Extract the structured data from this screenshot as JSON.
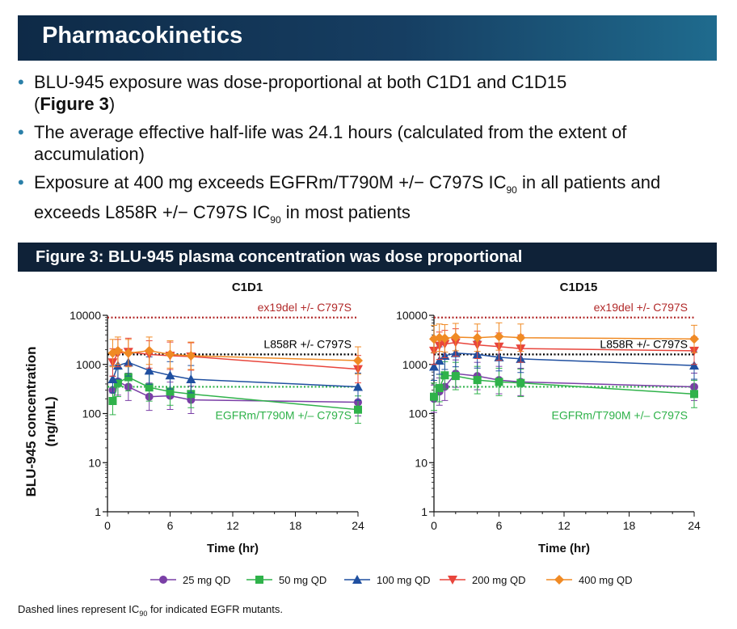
{
  "header": {
    "title": "Pharmacokinetics"
  },
  "bullets": [
    {
      "text": "BLU-945 exposure was dose-proportional at both C1D1 and C1D15",
      "bold_part": "Figure 3"
    },
    {
      "text": "The average effective half-life was 24.1 hours (calculated from the extent of accumulation)"
    },
    {
      "part1": "Exposure at 400 mg exceeds EGFRm/T790M +/− C797S IC",
      "sub1": "90",
      "part2": " in all patients and exceeds L858R +/− C797S IC",
      "sub2": "90",
      "part3": " in most patients"
    }
  ],
  "figure": {
    "caption": "Figure 3: BLU-945 plasma concentration was dose proportional"
  },
  "footnote": {
    "text": "Dashed lines represent IC",
    "sub": "90",
    "text2": " for indicated EGFR mutants."
  },
  "chart_data": {
    "type": "line",
    "ylabel": "BLU-945 concentration",
    "ylabel2": "(ng/mL)",
    "xlabel": "Time (hr)",
    "yscale": "log",
    "ylim": [
      1,
      10000
    ],
    "xlim": [
      0,
      24
    ],
    "xticks": [
      0,
      6,
      12,
      18,
      24
    ],
    "yticks": [
      1,
      10,
      100,
      1000,
      10000
    ],
    "ytick_labels": [
      "1",
      "10",
      "100",
      "1000",
      "10000"
    ],
    "legend": [
      {
        "name": "25 mg QD",
        "color": "#7a3fa6",
        "marker": "circle"
      },
      {
        "name": "50 mg QD",
        "color": "#2fb24a",
        "marker": "square"
      },
      {
        "name": "100 mg QD",
        "color": "#1f4fa0",
        "marker": "triangle-up"
      },
      {
        "name": "200 mg QD",
        "color": "#e8453c",
        "marker": "triangle-down"
      },
      {
        "name": "400 mg QD",
        "color": "#f08a24",
        "marker": "diamond"
      }
    ],
    "reference_lines": [
      {
        "label": "ex19del +/- C797S",
        "y": 9000,
        "color": "#b22a2a"
      },
      {
        "label": "L858R +/- C797S",
        "y": 1600,
        "color": "#000000"
      },
      {
        "label": "EGFRm/T790M +/– C797S",
        "y": 350,
        "color": "#2fb24a"
      }
    ],
    "panels": [
      {
        "title": "C1D1",
        "series": [
          {
            "name": "25 mg QD",
            "x": [
              0.5,
              1,
              2,
              4,
              6,
              8,
              24
            ],
            "y": [
              300,
              450,
              350,
              220,
              230,
              190,
              170
            ]
          },
          {
            "name": "50 mg QD",
            "x": [
              0.5,
              1,
              2,
              4,
              6,
              8,
              24
            ],
            "y": [
              180,
              420,
              550,
              340,
              280,
              250,
              120
            ]
          },
          {
            "name": "100 mg QD",
            "x": [
              0.5,
              1,
              2,
              4,
              6,
              8,
              24
            ],
            "y": [
              500,
              950,
              1100,
              750,
              600,
              500,
              350
            ]
          },
          {
            "name": "200 mg QD",
            "x": [
              0.5,
              1,
              2,
              4,
              6,
              8,
              24
            ],
            "y": [
              1100,
              1700,
              1800,
              1600,
              1500,
              1450,
              800
            ]
          },
          {
            "name": "400 mg QD",
            "x": [
              0.5,
              1,
              2,
              4,
              6,
              8,
              24
            ],
            "y": [
              1700,
              1900,
              1700,
              1900,
              1600,
              1500,
              1200
            ]
          }
        ]
      },
      {
        "title": "C1D15",
        "series": [
          {
            "name": "25 mg QD",
            "x": [
              0,
              0.5,
              1,
              2,
              4,
              6,
              8,
              24
            ],
            "y": [
              200,
              280,
              350,
              650,
              580,
              480,
              440,
              350
            ]
          },
          {
            "name": "50 mg QD",
            "x": [
              0,
              0.5,
              1,
              2,
              4,
              6,
              8,
              24
            ],
            "y": [
              220,
              330,
              600,
              580,
              480,
              440,
              420,
              250
            ]
          },
          {
            "name": "100 mg QD",
            "x": [
              0,
              0.5,
              1,
              2,
              4,
              6,
              8,
              24
            ],
            "y": [
              900,
              1200,
              1500,
              1700,
              1600,
              1400,
              1300,
              950
            ]
          },
          {
            "name": "200 mg QD",
            "x": [
              0,
              0.5,
              1,
              2,
              4,
              6,
              8,
              24
            ],
            "y": [
              1900,
              2400,
              2600,
              2800,
              2500,
              2300,
              2100,
              1900
            ]
          },
          {
            "name": "400 mg QD",
            "x": [
              0,
              0.5,
              1,
              2,
              4,
              6,
              8,
              24
            ],
            "y": [
              3300,
              3500,
              3400,
              3600,
              3500,
              3700,
              3500,
              3300
            ]
          }
        ]
      }
    ]
  }
}
